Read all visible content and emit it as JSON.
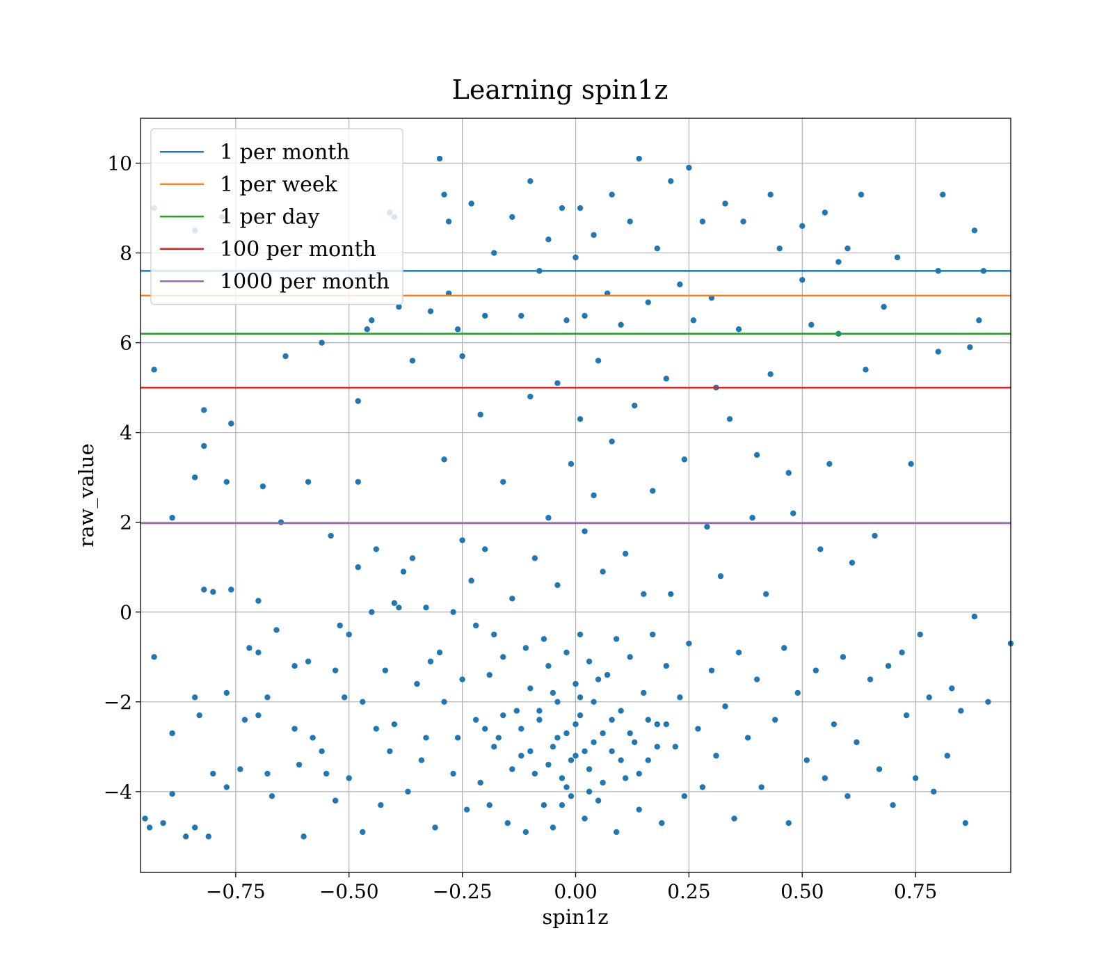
{
  "chart_data": {
    "type": "scatter",
    "title": "Learning spin1z",
    "xlabel": "spin1z",
    "ylabel": "raw_value",
    "xlim": [
      -0.96,
      0.96
    ],
    "ylim": [
      -5.8,
      11.0
    ],
    "x_ticks": [
      -0.75,
      -0.5,
      -0.25,
      0.0,
      0.25,
      0.5,
      0.75
    ],
    "x_tick_labels": [
      "−0.75",
      "−0.50",
      "−0.25",
      "0.00",
      "0.25",
      "0.50",
      "0.75"
    ],
    "y_ticks": [
      -4,
      -2,
      0,
      2,
      4,
      6,
      8,
      10
    ],
    "y_tick_labels": [
      "−4",
      "−2",
      "0",
      "2",
      "4",
      "6",
      "8",
      "10"
    ],
    "grid": true,
    "legend_position": "upper-left",
    "scatter_color": "#1f77b4",
    "thresholds": [
      {
        "name": "1 per month",
        "y": 7.6,
        "color": "#1f77b4"
      },
      {
        "name": "1 per week",
        "y": 7.05,
        "color": "#ff7f0e"
      },
      {
        "name": "1 per day",
        "y": 6.2,
        "color": "#2ca02c"
      },
      {
        "name": "100 per month",
        "y": 5.0,
        "color": "#d62728"
      },
      {
        "name": "1000 per month",
        "y": 1.98,
        "color": "#9467bd"
      }
    ],
    "points": [
      [
        -0.93,
        9.0
      ],
      [
        -0.93,
        5.4
      ],
      [
        -0.93,
        -1.0
      ],
      [
        -0.95,
        -4.6
      ],
      [
        -0.94,
        -4.8
      ],
      [
        -0.91,
        -4.7
      ],
      [
        -0.89,
        2.1
      ],
      [
        -0.89,
        -2.7
      ],
      [
        -0.89,
        -4.05
      ],
      [
        -0.86,
        -5.0
      ],
      [
        -0.84,
        8.5
      ],
      [
        -0.84,
        3.0
      ],
      [
        -0.84,
        -1.9
      ],
      [
        -0.84,
        -4.8
      ],
      [
        -0.83,
        -2.3
      ],
      [
        -0.82,
        4.5
      ],
      [
        -0.82,
        3.7
      ],
      [
        -0.82,
        0.5
      ],
      [
        -0.81,
        -5.0
      ],
      [
        -0.8,
        0.45
      ],
      [
        -0.8,
        -3.6
      ],
      [
        -0.78,
        8.8
      ],
      [
        -0.77,
        2.9
      ],
      [
        -0.77,
        -1.8
      ],
      [
        -0.77,
        -3.9
      ],
      [
        -0.76,
        4.2
      ],
      [
        -0.76,
        0.5
      ],
      [
        -0.74,
        -3.5
      ],
      [
        -0.73,
        -2.4
      ],
      [
        -0.72,
        -0.8
      ],
      [
        -0.7,
        0.25
      ],
      [
        -0.7,
        -0.9
      ],
      [
        -0.7,
        -2.3
      ],
      [
        -0.69,
        2.8
      ],
      [
        -0.68,
        -1.9
      ],
      [
        -0.68,
        -3.6
      ],
      [
        -0.67,
        -4.1
      ],
      [
        -0.66,
        -0.4
      ],
      [
        -0.65,
        2.0
      ],
      [
        -0.64,
        5.7
      ],
      [
        -0.64,
        8.0
      ],
      [
        -0.62,
        -1.2
      ],
      [
        -0.62,
        -2.6
      ],
      [
        -0.61,
        -3.4
      ],
      [
        -0.6,
        -5.0
      ],
      [
        -0.59,
        2.9
      ],
      [
        -0.59,
        -1.1
      ],
      [
        -0.58,
        -2.8
      ],
      [
        -0.56,
        6.0
      ],
      [
        -0.56,
        -3.1
      ],
      [
        -0.55,
        -3.6
      ],
      [
        -0.54,
        1.7
      ],
      [
        -0.53,
        -1.3
      ],
      [
        -0.53,
        -4.2
      ],
      [
        -0.52,
        -0.3
      ],
      [
        -0.51,
        -1.9
      ],
      [
        -0.5,
        -0.5
      ],
      [
        -0.5,
        -3.7
      ],
      [
        -0.48,
        4.7
      ],
      [
        -0.48,
        2.9
      ],
      [
        -0.48,
        1.0
      ],
      [
        -0.47,
        -2.0
      ],
      [
        -0.47,
        -4.9
      ],
      [
        -0.46,
        6.3
      ],
      [
        -0.45,
        6.5
      ],
      [
        -0.45,
        0.0
      ],
      [
        -0.44,
        1.4
      ],
      [
        -0.44,
        -2.6
      ],
      [
        -0.43,
        -4.3
      ],
      [
        -0.42,
        -1.3
      ],
      [
        -0.41,
        8.9
      ],
      [
        -0.41,
        -3.1
      ],
      [
        -0.4,
        8.8
      ],
      [
        -0.4,
        0.2
      ],
      [
        -0.4,
        -2.5
      ],
      [
        -0.39,
        0.1
      ],
      [
        -0.39,
        6.8
      ],
      [
        -0.38,
        0.9
      ],
      [
        -0.37,
        -4.0
      ],
      [
        -0.36,
        1.2
      ],
      [
        -0.36,
        5.6
      ],
      [
        -0.35,
        -1.6
      ],
      [
        -0.34,
        -3.3
      ],
      [
        -0.33,
        0.1
      ],
      [
        -0.33,
        -2.8
      ],
      [
        -0.32,
        6.7
      ],
      [
        -0.32,
        -1.1
      ],
      [
        -0.31,
        -4.8
      ],
      [
        -0.3,
        10.1
      ],
      [
        -0.3,
        -0.9
      ],
      [
        -0.29,
        9.3
      ],
      [
        -0.29,
        3.4
      ],
      [
        -0.29,
        -2.0
      ],
      [
        -0.28,
        8.7
      ],
      [
        -0.28,
        7.1
      ],
      [
        -0.27,
        0.0
      ],
      [
        -0.27,
        -3.6
      ],
      [
        -0.26,
        6.3
      ],
      [
        -0.26,
        -2.8
      ],
      [
        -0.25,
        5.7
      ],
      [
        -0.25,
        1.6
      ],
      [
        -0.25,
        -1.5
      ],
      [
        -0.24,
        -4.4
      ],
      [
        -0.23,
        9.1
      ],
      [
        -0.23,
        0.7
      ],
      [
        -0.22,
        -0.3
      ],
      [
        -0.22,
        -2.4
      ],
      [
        -0.21,
        4.4
      ],
      [
        -0.21,
        -3.8
      ],
      [
        -0.2,
        6.6
      ],
      [
        -0.2,
        1.4
      ],
      [
        -0.19,
        -1.4
      ],
      [
        -0.19,
        -4.3
      ],
      [
        -0.18,
        8.0
      ],
      [
        -0.18,
        -0.5
      ],
      [
        -0.17,
        -2.8
      ],
      [
        -0.16,
        2.9
      ],
      [
        -0.16,
        -1.0
      ],
      [
        -0.15,
        -4.7
      ],
      [
        -0.14,
        8.8
      ],
      [
        -0.14,
        0.3
      ],
      [
        -0.13,
        -2.2
      ],
      [
        -0.12,
        6.6
      ],
      [
        -0.12,
        -3.2
      ],
      [
        -0.11,
        -0.8
      ],
      [
        -0.11,
        -4.9
      ],
      [
        -0.1,
        9.6
      ],
      [
        -0.1,
        4.8
      ],
      [
        -0.1,
        -1.7
      ],
      [
        -0.09,
        1.2
      ],
      [
        -0.09,
        -3.6
      ],
      [
        -0.08,
        7.6
      ],
      [
        -0.08,
        -2.4
      ],
      [
        -0.07,
        -0.6
      ],
      [
        -0.07,
        -4.3
      ],
      [
        -0.06,
        8.3
      ],
      [
        -0.06,
        2.1
      ],
      [
        -0.06,
        -1.2
      ],
      [
        -0.05,
        -3.0
      ],
      [
        -0.05,
        -4.8
      ],
      [
        -0.04,
        5.1
      ],
      [
        -0.04,
        0.6
      ],
      [
        -0.04,
        -2.0
      ],
      [
        -0.03,
        -3.7
      ],
      [
        -0.03,
        9.0
      ],
      [
        -0.02,
        6.5
      ],
      [
        -0.02,
        -0.9
      ],
      [
        -0.02,
        -2.7
      ],
      [
        -0.01,
        3.3
      ],
      [
        -0.01,
        -4.1
      ],
      [
        0.0,
        7.9
      ],
      [
        0.0,
        -1.6
      ],
      [
        0.0,
        -3.2
      ],
      [
        0.01,
        9.0
      ],
      [
        0.01,
        4.3
      ],
      [
        0.01,
        -0.5
      ],
      [
        0.01,
        -2.3
      ],
      [
        0.02,
        -4.6
      ],
      [
        0.02,
        6.6
      ],
      [
        0.02,
        1.8
      ],
      [
        0.03,
        -1.1
      ],
      [
        0.03,
        -3.5
      ],
      [
        0.04,
        8.4
      ],
      [
        0.04,
        2.6
      ],
      [
        0.04,
        -2.0
      ],
      [
        0.05,
        -4.2
      ],
      [
        0.05,
        5.6
      ],
      [
        0.06,
        0.9
      ],
      [
        0.06,
        -2.7
      ],
      [
        0.07,
        7.1
      ],
      [
        0.07,
        -1.4
      ],
      [
        0.08,
        9.3
      ],
      [
        0.08,
        3.8
      ],
      [
        0.08,
        -3.1
      ],
      [
        0.09,
        -0.6
      ],
      [
        0.09,
        -4.9
      ],
      [
        0.1,
        6.4
      ],
      [
        0.1,
        -2.2
      ],
      [
        0.11,
        1.3
      ],
      [
        0.11,
        -3.7
      ],
      [
        0.12,
        8.7
      ],
      [
        0.12,
        -1.0
      ],
      [
        0.13,
        4.6
      ],
      [
        0.13,
        -2.9
      ],
      [
        0.14,
        10.1
      ],
      [
        0.14,
        -4.4
      ],
      [
        0.15,
        0.4
      ],
      [
        0.15,
        -1.8
      ],
      [
        0.16,
        6.9
      ],
      [
        0.16,
        -3.3
      ],
      [
        0.17,
        2.7
      ],
      [
        0.17,
        -0.5
      ],
      [
        0.18,
        8.1
      ],
      [
        0.18,
        -2.5
      ],
      [
        0.19,
        -4.7
      ],
      [
        0.2,
        5.2
      ],
      [
        0.2,
        -1.2
      ],
      [
        0.21,
        9.6
      ],
      [
        0.21,
        0.4
      ],
      [
        0.22,
        -3.0
      ],
      [
        0.23,
        7.3
      ],
      [
        0.23,
        -1.9
      ],
      [
        0.24,
        3.4
      ],
      [
        0.24,
        -4.1
      ],
      [
        0.25,
        9.9
      ],
      [
        0.25,
        -0.7
      ],
      [
        0.26,
        6.5
      ],
      [
        0.27,
        -2.6
      ],
      [
        0.28,
        8.7
      ],
      [
        0.28,
        -3.9
      ],
      [
        0.29,
        1.9
      ],
      [
        0.3,
        -1.3
      ],
      [
        0.3,
        7.0
      ],
      [
        0.31,
        5.0
      ],
      [
        0.31,
        -3.2
      ],
      [
        0.32,
        0.8
      ],
      [
        0.33,
        9.1
      ],
      [
        0.33,
        -2.1
      ],
      [
        0.34,
        4.3
      ],
      [
        0.35,
        -4.6
      ],
      [
        0.36,
        6.3
      ],
      [
        0.36,
        -0.9
      ],
      [
        0.37,
        8.7
      ],
      [
        0.38,
        -2.8
      ],
      [
        0.39,
        2.1
      ],
      [
        0.4,
        -1.5
      ],
      [
        0.4,
        3.5
      ],
      [
        0.41,
        -3.9
      ],
      [
        0.42,
        0.4
      ],
      [
        0.43,
        9.3
      ],
      [
        0.43,
        5.3
      ],
      [
        0.44,
        -2.4
      ],
      [
        0.45,
        8.1
      ],
      [
        0.46,
        -0.8
      ],
      [
        0.47,
        3.1
      ],
      [
        0.47,
        -4.7
      ],
      [
        0.48,
        2.2
      ],
      [
        0.49,
        -1.8
      ],
      [
        0.5,
        8.6
      ],
      [
        0.5,
        7.4
      ],
      [
        0.51,
        -3.3
      ],
      [
        0.52,
        6.4
      ],
      [
        0.53,
        -1.3
      ],
      [
        0.54,
        1.4
      ],
      [
        0.55,
        8.9
      ],
      [
        0.55,
        -3.7
      ],
      [
        0.56,
        3.3
      ],
      [
        0.57,
        -2.5
      ],
      [
        0.58,
        7.8
      ],
      [
        0.58,
        6.2
      ],
      [
        0.59,
        -1.0
      ],
      [
        0.6,
        8.1
      ],
      [
        0.6,
        -4.1
      ],
      [
        0.61,
        1.1
      ],
      [
        0.62,
        -2.9
      ],
      [
        0.63,
        9.3
      ],
      [
        0.64,
        5.4
      ],
      [
        0.65,
        -1.5
      ],
      [
        0.66,
        1.7
      ],
      [
        0.67,
        -3.5
      ],
      [
        0.68,
        6.8
      ],
      [
        0.69,
        -1.2
      ],
      [
        0.7,
        -4.3
      ],
      [
        0.71,
        7.9
      ],
      [
        0.72,
        -0.9
      ],
      [
        0.73,
        -2.3
      ],
      [
        0.74,
        3.3
      ],
      [
        0.75,
        -3.7
      ],
      [
        0.76,
        -0.5
      ],
      [
        0.78,
        -1.9
      ],
      [
        0.79,
        -4.0
      ],
      [
        0.8,
        5.8
      ],
      [
        0.8,
        7.6
      ],
      [
        0.81,
        9.3
      ],
      [
        0.82,
        -3.2
      ],
      [
        0.83,
        -1.7
      ],
      [
        0.85,
        -2.2
      ],
      [
        0.86,
        -4.7
      ],
      [
        0.87,
        5.9
      ],
      [
        0.88,
        8.5
      ],
      [
        0.88,
        -0.1
      ],
      [
        0.89,
        6.5
      ],
      [
        0.9,
        7.6
      ],
      [
        0.91,
        -2.0
      ],
      [
        0.96,
        -0.7
      ],
      [
        -0.12,
        -2.6
      ],
      [
        -0.1,
        -3.1
      ],
      [
        -0.08,
        -2.2
      ],
      [
        -0.06,
        -3.4
      ],
      [
        -0.04,
        -2.8
      ],
      [
        -0.02,
        -3.9
      ],
      [
        0.0,
        -2.5
      ],
      [
        0.02,
        -3.1
      ],
      [
        0.04,
        -2.9
      ],
      [
        0.06,
        -3.8
      ],
      [
        0.08,
        -2.4
      ],
      [
        0.1,
        -3.3
      ],
      [
        0.12,
        -2.7
      ],
      [
        0.14,
        -3.6
      ],
      [
        -0.14,
        -3.5
      ],
      [
        -0.16,
        -2.3
      ],
      [
        -0.18,
        -3.0
      ],
      [
        -0.2,
        -2.6
      ],
      [
        0.16,
        -2.4
      ],
      [
        0.18,
        -3.0
      ],
      [
        0.2,
        -2.5
      ],
      [
        0.03,
        -4.0
      ],
      [
        -0.03,
        -4.3
      ],
      [
        0.05,
        -1.5
      ],
      [
        -0.05,
        -1.8
      ],
      [
        0.01,
        -1.9
      ],
      [
        -0.01,
        -3.3
      ]
    ]
  }
}
